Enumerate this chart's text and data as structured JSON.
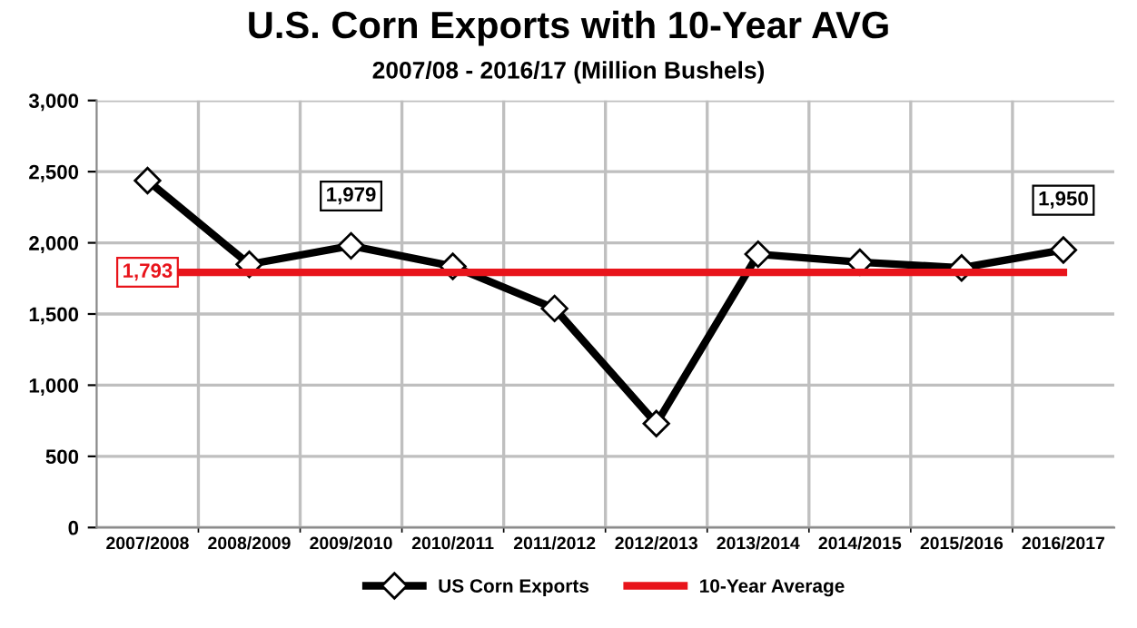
{
  "chart_data": {
    "type": "line",
    "title": "U.S. Corn Exports with 10-Year AVG",
    "subtitle": "2007/08 - 2016/17 (Million Bushels)",
    "categories": [
      "2007/2008",
      "2008/2009",
      "2009/2010",
      "2010/2011",
      "2011/2012",
      "2012/2013",
      "2013/2014",
      "2014/2015",
      "2015/2016",
      "2016/2017"
    ],
    "series": [
      {
        "name": "US Corn Exports",
        "color": "#000000",
        "marker": "diamond",
        "values": [
          2437,
          1849,
          1979,
          1835,
          1539,
          730,
          1920,
          1864,
          1824,
          1950
        ],
        "value_labels": [
          null,
          null,
          "1,979",
          null,
          null,
          null,
          null,
          null,
          null,
          "1,950"
        ]
      },
      {
        "name": "10-Year Average",
        "color": "#e8141b",
        "marker": "none",
        "values": [
          1793,
          1793,
          1793,
          1793,
          1793,
          1793,
          1793,
          1793,
          1793,
          1793
        ],
        "value_labels": [
          "1,793",
          null,
          null,
          null,
          null,
          null,
          null,
          null,
          null,
          null
        ]
      }
    ],
    "ylim": [
      0,
      3000
    ],
    "yticks": [
      {
        "value": 0,
        "label": "0"
      },
      {
        "value": 500,
        "label": "500"
      },
      {
        "value": 1000,
        "label": "1,000"
      },
      {
        "value": 1500,
        "label": "1,500"
      },
      {
        "value": 2000,
        "label": "2,000"
      },
      {
        "value": 2500,
        "label": "2,500"
      },
      {
        "value": 3000,
        "label": "3,000"
      }
    ],
    "grid": true,
    "legend": "bottom"
  }
}
